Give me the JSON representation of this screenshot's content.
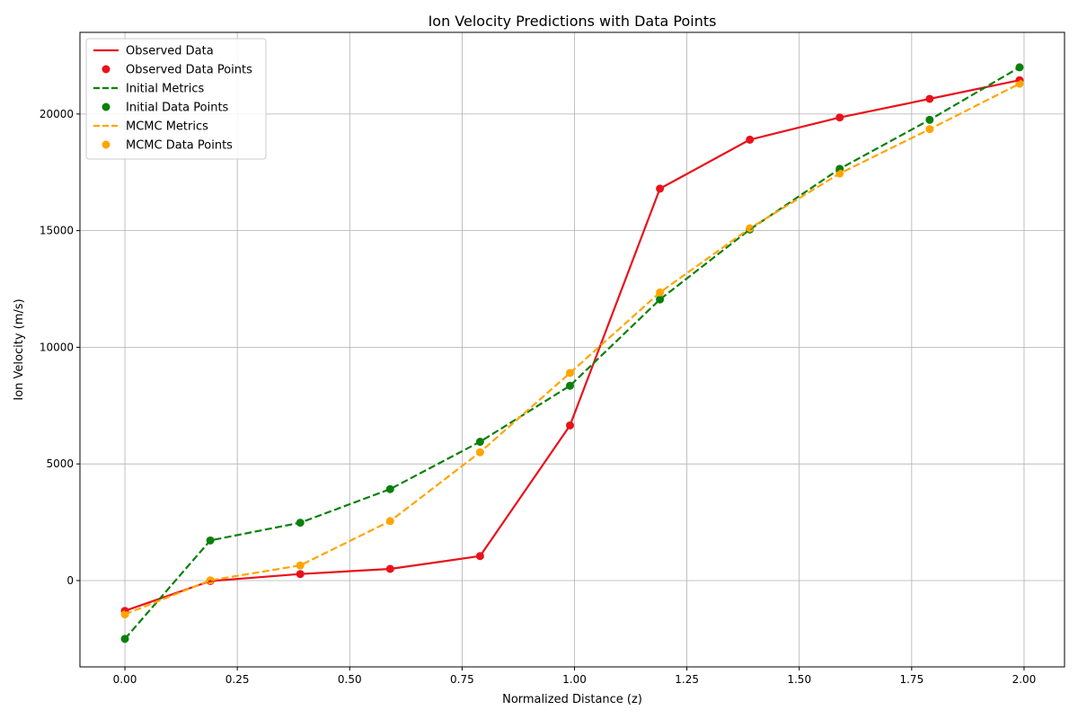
{
  "chart_data": {
    "type": "line",
    "title": "Ion Velocity Predictions with Data Points",
    "xlabel": "Normalized Distance (z)",
    "ylabel": "Ion Velocity (m/s)",
    "xlim": [
      -0.1,
      2.09
    ],
    "ylim": [
      -3700,
      23500
    ],
    "xticks": [
      0.0,
      0.25,
      0.5,
      0.75,
      1.0,
      1.25,
      1.5,
      1.75,
      2.0
    ],
    "xtick_labels": [
      "0.00",
      "0.25",
      "0.50",
      "0.75",
      "1.00",
      "1.25",
      "1.50",
      "1.75",
      "2.00"
    ],
    "yticks": [
      0,
      5000,
      10000,
      15000,
      20000
    ],
    "ytick_labels": [
      "0",
      "5000",
      "10000",
      "15000",
      "20000"
    ],
    "grid": true,
    "legend_position": "top-left",
    "x": [
      0.0,
      0.19,
      0.39,
      0.59,
      0.79,
      0.99,
      1.19,
      1.39,
      1.59,
      1.79,
      1.99
    ],
    "series": [
      {
        "key": "observed",
        "line_label": "Observed Data",
        "points_label": "Observed Data Points",
        "color": "#e8121b",
        "style": "solid",
        "values": [
          -1300,
          -20,
          280,
          500,
          1050,
          6650,
          16800,
          18900,
          19850,
          20650,
          21450
        ]
      },
      {
        "key": "initial",
        "line_label": "Initial Metrics",
        "points_label": "Initial Data Points",
        "color": "#0a800a",
        "style": "dashed",
        "values": [
          -2500,
          1720,
          2480,
          3920,
          5950,
          8350,
          12050,
          15050,
          17650,
          19750,
          22000
        ]
      },
      {
        "key": "mcmc",
        "line_label": "MCMC Metrics",
        "points_label": "MCMC Data Points",
        "color": "#ffa500",
        "style": "dashed",
        "values": [
          -1450,
          10,
          650,
          2550,
          5500,
          8900,
          12350,
          15100,
          17450,
          19350,
          21300
        ]
      }
    ]
  }
}
